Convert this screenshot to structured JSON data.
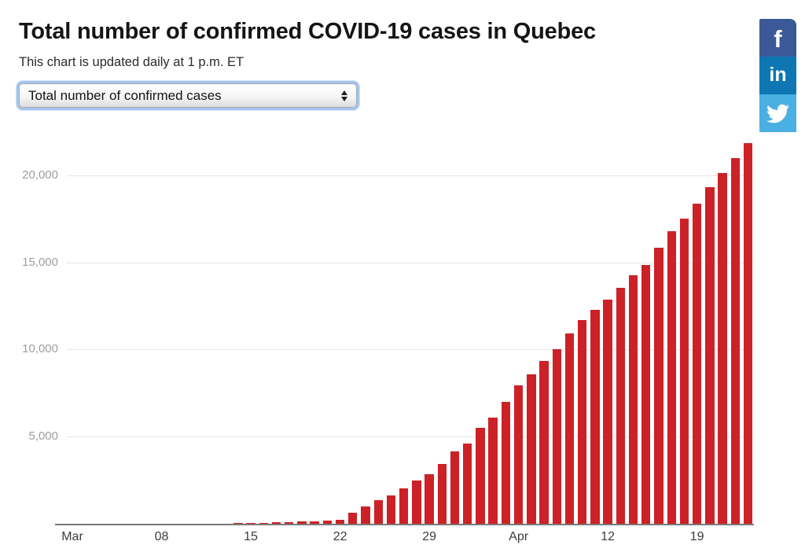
{
  "header": {
    "title": "Total number of confirmed COVID-19 cases in Quebec",
    "subtitle": "This chart is updated daily at 1 p.m. ET"
  },
  "controls": {
    "metric_select": {
      "value": "Total number of confirmed cases",
      "options": [
        "Total number of confirmed cases"
      ],
      "focus_ring_color": "#a3c4f1"
    }
  },
  "share": {
    "facebook": {
      "label": "f",
      "color": "#3b5998",
      "icon": "facebook-f"
    },
    "linkedin": {
      "label": "in",
      "color": "#0e77b3",
      "icon": "linkedin-in"
    },
    "twitter": {
      "color": "#4aafe2",
      "icon": "twitter-bird"
    }
  },
  "chart_data": {
    "type": "bar",
    "title": "Total number of confirmed COVID-19 cases in Quebec",
    "xlabel": "",
    "ylabel": "",
    "ylim": [
      0,
      22000
    ],
    "grid": "horizontal",
    "legend": "none",
    "bar_color": "#cc2127",
    "colors": {
      "grid": "#e7e7e7",
      "axis": "#7a7a7a",
      "y_label": "#9e9e9e",
      "x_label": "#3d3d3d"
    },
    "x": [
      "Mar 1",
      "Mar 2",
      "Mar 3",
      "Mar 4",
      "Mar 5",
      "Mar 6",
      "Mar 7",
      "Mar 8",
      "Mar 9",
      "Mar 10",
      "Mar 11",
      "Mar 12",
      "Mar 13",
      "Mar 14",
      "Mar 15",
      "Mar 16",
      "Mar 17",
      "Mar 18",
      "Mar 19",
      "Mar 20",
      "Mar 21",
      "Mar 22",
      "Mar 23",
      "Mar 24",
      "Mar 25",
      "Mar 26",
      "Mar 27",
      "Mar 28",
      "Mar 29",
      "Mar 30",
      "Mar 31",
      "Apr 1",
      "Apr 2",
      "Apr 3",
      "Apr 4",
      "Apr 5",
      "Apr 6",
      "Apr 7",
      "Apr 8",
      "Apr 9",
      "Apr 10",
      "Apr 11",
      "Apr 12",
      "Apr 13",
      "Apr 14",
      "Apr 15",
      "Apr 16",
      "Apr 17",
      "Apr 18",
      "Apr 19",
      "Apr 20",
      "Apr 21",
      "Apr 22",
      "Apr 23"
    ],
    "values": [
      1,
      1,
      1,
      2,
      2,
      3,
      4,
      4,
      4,
      8,
      13,
      17,
      17,
      24,
      39,
      50,
      74,
      94,
      121,
      139,
      181,
      219,
      628,
      1013,
      1339,
      1629,
      2021,
      2498,
      2840,
      3430,
      4162,
      4611,
      5518,
      6101,
      6997,
      7944,
      8580,
      9340,
      10031,
      10912,
      11677,
      12292,
      12846,
      13557,
      14248,
      14860,
      15857,
      16798,
      17521,
      18357,
      19319,
      20126,
      20965,
      21838
    ],
    "xticks": [
      {
        "label": "Mar",
        "day": 0
      },
      {
        "label": "08",
        "day": 7
      },
      {
        "label": "15",
        "day": 14
      },
      {
        "label": "22",
        "day": 21
      },
      {
        "label": "29",
        "day": 28
      },
      {
        "label": "Apr",
        "day": 35
      },
      {
        "label": "12",
        "day": 42
      },
      {
        "label": "19",
        "day": 49
      }
    ],
    "yticks": [
      {
        "label": "5,000",
        "value": 5000
      },
      {
        "label": "10,000",
        "value": 10000
      },
      {
        "label": "15,000",
        "value": 15000
      },
      {
        "label": "20,000",
        "value": 20000
      }
    ]
  }
}
